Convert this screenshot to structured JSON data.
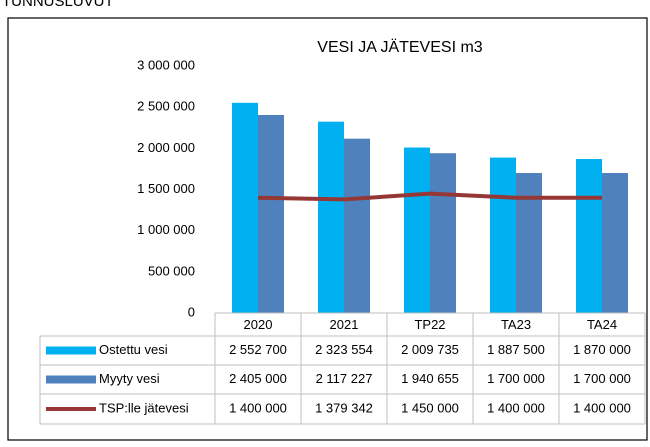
{
  "heading": "TUNNUSLUVUT",
  "chart_data": {
    "type": "bar",
    "title": "VESI JA JÄTEVESI m3",
    "categories": [
      "2020",
      "2021",
      "TP22",
      "TA23",
      "TA24"
    ],
    "series": [
      {
        "name": "Ostettu vesi",
        "color": "#00b0f0",
        "values": [
          2552700,
          2323554,
          2009735,
          1887500,
          1870000
        ],
        "value_labels": [
          "2 552 700",
          "2 323 554",
          "2 009 735",
          "1 887 500",
          "1 870 000"
        ]
      },
      {
        "name": "Myyty vesi",
        "color": "#4f81bd",
        "values": [
          2405000,
          2117227,
          1940655,
          1700000,
          1700000
        ],
        "value_labels": [
          "2 405 000",
          "2 117 227",
          "1 940 655",
          "1 700 000",
          "1 700 000"
        ]
      },
      {
        "name": "TSP:lle jätevesi",
        "type": "line",
        "color": "#953735",
        "values": [
          1400000,
          1379342,
          1450000,
          1400000,
          1400000
        ],
        "value_labels": [
          "1 400 000",
          "1 379 342",
          "1 450 000",
          "1 400 000",
          "1 400 000"
        ]
      }
    ],
    "ylim": [
      0,
      3000000
    ],
    "yticks": [
      0,
      {
        "value": 500000,
        "label": "500 000"
      },
      {
        "value": 1000000,
        "label": "1 000 000"
      },
      {
        "value": 1500000,
        "label": "1 500 000"
      },
      {
        "value": 2000000,
        "label": "2 000 000"
      },
      {
        "value": 2500000,
        "label": "2 500 000"
      },
      {
        "value": 3000000,
        "label": "3 000 000"
      }
    ]
  }
}
